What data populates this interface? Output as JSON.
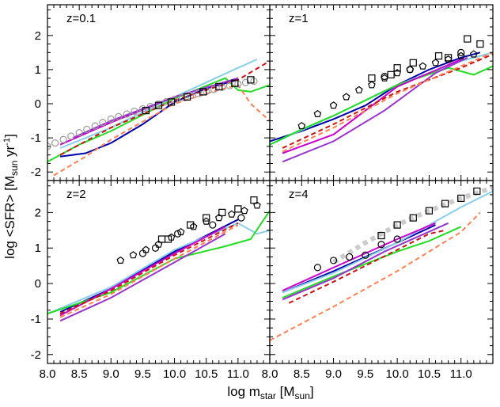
{
  "figure": {
    "xlabel_main": "log m",
    "xlabel_sub": "star",
    "xlabel_unit_pre": " [M",
    "xlabel_unit_sub": "sun",
    "xlabel_unit_post": "]",
    "ylabel_main": "log <SFR> [M",
    "ylabel_sub": "sun",
    "ylabel_mid": " yr",
    "ylabel_sup": "-1",
    "ylabel_post": "]"
  },
  "chart_data": [
    {
      "type": "line",
      "panel": "top-left",
      "label": "z=0.1",
      "xlim": [
        8.0,
        11.5
      ],
      "ylim": [
        -2.25,
        2.9
      ],
      "xticks": [],
      "yticks": [
        "-2",
        "-1",
        "0",
        "1",
        "2"
      ],
      "series": [
        {
          "color": "#0000aa",
          "dash": "",
          "x": [
            8.2,
            8.6,
            9.0,
            9.5,
            10.0,
            10.5,
            11.0
          ],
          "y": [
            -1.55,
            -1.45,
            -1.15,
            -0.6,
            0.05,
            0.45,
            0.7
          ]
        },
        {
          "color": "#87ceeb",
          "dash": "",
          "x": [
            8.2,
            9.0,
            10.0,
            11.0,
            11.3
          ],
          "y": [
            -1.3,
            -0.7,
            0.2,
            1.05,
            1.3
          ]
        },
        {
          "color": "#22dd22",
          "dash": "",
          "x": [
            8.0,
            8.5,
            9.0,
            10.0,
            10.8,
            11.0,
            11.2,
            11.5
          ],
          "y": [
            -1.7,
            -1.2,
            -0.8,
            0.15,
            0.75,
            0.4,
            0.35,
            0.55
          ]
        },
        {
          "color": "#cc00cc",
          "dash": "",
          "x": [
            8.2,
            9.0,
            10.0,
            11.0
          ],
          "y": [
            -1.2,
            -0.55,
            0.2,
            0.75
          ]
        },
        {
          "color": "#9933cc",
          "dash": "",
          "x": [
            8.4,
            9.0,
            10.0,
            11.0
          ],
          "y": [
            -1.0,
            -0.5,
            0.2,
            0.75
          ]
        },
        {
          "color": "#cc1111",
          "dash": "6,4",
          "x": [
            8.2,
            9.0,
            10.0,
            11.0,
            11.5
          ],
          "y": [
            -1.5,
            -0.7,
            0.1,
            0.7,
            1.25
          ]
        },
        {
          "color": "#ff7f50",
          "dash": "6,4",
          "x": [
            8.1,
            8.6,
            9.0,
            10.0,
            10.6,
            11.0,
            11.2,
            11.5
          ],
          "y": [
            -2.1,
            -1.55,
            -1.05,
            0.0,
            0.35,
            0.55,
            0.0,
            -0.5
          ]
        }
      ],
      "markers": [
        {
          "shape": "circle",
          "color": "#999999",
          "x": [
            8.0,
            8.12,
            8.25,
            8.37,
            8.5,
            8.62,
            8.75,
            8.87,
            9.0,
            9.12,
            9.25,
            9.37,
            9.5,
            9.62,
            9.75,
            9.87,
            10.0,
            10.12,
            10.25,
            10.37,
            10.5,
            10.62,
            10.75,
            10.87,
            11.0,
            11.12,
            11.25
          ],
          "y": [
            -1.25,
            -1.15,
            -1.05,
            -0.95,
            -0.85,
            -0.75,
            -0.65,
            -0.55,
            -0.45,
            -0.38,
            -0.3,
            -0.22,
            -0.15,
            -0.08,
            -0.01,
            0.06,
            0.12,
            0.18,
            0.24,
            0.3,
            0.36,
            0.42,
            0.48,
            0.53,
            0.58,
            0.62,
            0.66
          ]
        },
        {
          "shape": "square",
          "color": "#000000",
          "x": [
            9.55,
            9.75,
            9.95,
            10.2,
            10.45,
            10.7,
            10.95,
            11.2
          ],
          "y": [
            -0.2,
            -0.05,
            0.05,
            0.2,
            0.35,
            0.5,
            0.6,
            0.7
          ]
        }
      ]
    },
    {
      "type": "line",
      "panel": "top-right",
      "label": "z=1",
      "xlim": [
        8.0,
        11.5
      ],
      "ylim": [
        -2.25,
        2.9
      ],
      "xticks": [],
      "yticks": [],
      "series": [
        {
          "color": "#0000aa",
          "dash": "",
          "x": [
            8.0,
            8.5,
            9.0,
            9.5,
            10.0,
            10.5,
            11.0,
            11.3
          ],
          "y": [
            -1.1,
            -0.8,
            -0.45,
            -0.05,
            0.55,
            1.0,
            1.35,
            1.5
          ]
        },
        {
          "color": "#87ceeb",
          "dash": "",
          "x": [
            8.0,
            9.0,
            10.0,
            11.0,
            11.5
          ],
          "y": [
            -1.2,
            -0.35,
            0.55,
            1.25,
            1.5
          ]
        },
        {
          "color": "#22dd22",
          "dash": "",
          "x": [
            8.0,
            8.5,
            9.0,
            10.0,
            10.8,
            11.2,
            11.5
          ],
          "y": [
            -1.2,
            -0.75,
            -0.35,
            0.55,
            1.05,
            0.85,
            1.1
          ]
        },
        {
          "color": "#cc00cc",
          "dash": "",
          "x": [
            8.2,
            9.0,
            10.0,
            11.0
          ],
          "y": [
            -1.45,
            -0.9,
            0.5,
            1.3
          ]
        },
        {
          "color": "#9933cc",
          "dash": "",
          "x": [
            8.2,
            9.0,
            9.8,
            10.6,
            11.1
          ],
          "y": [
            -1.7,
            -1.1,
            -0.2,
            0.9,
            1.35
          ]
        },
        {
          "color": "#cc1111",
          "dash": "6,4",
          "x": [
            8.2,
            9.0,
            10.0,
            11.0,
            11.5
          ],
          "y": [
            -1.3,
            -0.6,
            0.35,
            1.05,
            1.45
          ]
        },
        {
          "color": "#ff7f50",
          "dash": "6,4",
          "x": [
            8.2,
            9.0,
            10.0,
            11.0,
            11.5
          ],
          "y": [
            -1.4,
            -0.7,
            0.3,
            1.1,
            1.5
          ]
        }
      ],
      "markers": [
        {
          "shape": "pentagon",
          "color": "#000000",
          "x": [
            8.5,
            8.75,
            9.0,
            9.2,
            9.4,
            9.6,
            9.8,
            10.0,
            10.2,
            10.4,
            10.6,
            10.8,
            11.0,
            11.2
          ],
          "y": [
            -0.65,
            -0.3,
            -0.05,
            0.2,
            0.4,
            0.55,
            0.75,
            0.9,
            1.0,
            1.1,
            1.2,
            1.3,
            1.4,
            1.45
          ]
        },
        {
          "shape": "circle",
          "color": "#000000",
          "x": [
            9.8,
            10.2,
            11.0
          ],
          "y": [
            0.8,
            1.0,
            1.5
          ]
        },
        {
          "shape": "square",
          "color": "#000000",
          "x": [
            9.6,
            9.9,
            10.0,
            10.25,
            10.65,
            10.8,
            11.1,
            11.3
          ],
          "y": [
            0.75,
            0.85,
            1.05,
            1.2,
            1.4,
            1.35,
            1.9,
            1.75
          ]
        }
      ]
    },
    {
      "type": "line",
      "panel": "bottom-left",
      "label": "z=2",
      "xlim": [
        8.0,
        11.5
      ],
      "ylim": [
        -2.25,
        2.9
      ],
      "xticks": [
        "8.0",
        "8.5",
        "9.0",
        "9.5",
        "10.0",
        "10.5",
        "11.0"
      ],
      "yticks": [
        "-2",
        "-1",
        "0",
        "1",
        "2"
      ],
      "series": [
        {
          "color": "#0000aa",
          "dash": "",
          "x": [
            8.2,
            9.0,
            10.0,
            11.0
          ],
          "y": [
            -0.8,
            -0.15,
            0.9,
            1.8
          ]
        },
        {
          "color": "#87ceeb",
          "dash": "",
          "x": [
            8.0,
            9.0,
            10.0,
            11.0,
            11.3,
            11.5
          ],
          "y": [
            -0.85,
            -0.1,
            0.95,
            1.7,
            1.4,
            1.5
          ]
        },
        {
          "color": "#22dd22",
          "dash": "",
          "x": [
            8.0,
            9.0,
            10.0,
            10.8,
            11.2,
            11.5
          ],
          "y": [
            -0.85,
            -0.25,
            0.7,
            1.05,
            1.25,
            2.05
          ]
        },
        {
          "color": "#cc00cc",
          "dash": "",
          "x": [
            8.2,
            9.0,
            10.0,
            10.8
          ],
          "y": [
            -0.9,
            -0.15,
            0.85,
            1.6
          ]
        },
        {
          "color": "#9933cc",
          "dash": "",
          "x": [
            8.2,
            9.0,
            10.0,
            10.8
          ],
          "y": [
            -1.05,
            -0.4,
            0.6,
            1.4
          ]
        },
        {
          "color": "#cc1111",
          "dash": "6,4",
          "x": [
            8.2,
            9.0,
            10.0,
            11.0
          ],
          "y": [
            -0.85,
            -0.2,
            0.8,
            1.7
          ]
        },
        {
          "color": "#ff7f50",
          "dash": "6,4",
          "x": [
            8.2,
            9.0,
            10.0,
            11.0
          ],
          "y": [
            -0.95,
            -0.3,
            0.7,
            1.65
          ]
        }
      ],
      "markers": [
        {
          "shape": "pentagon",
          "color": "#000000",
          "x": [
            9.15,
            9.35,
            9.55,
            9.75,
            9.95,
            10.1,
            10.3,
            10.5,
            10.7,
            10.9,
            11.1,
            11.3
          ],
          "y": [
            0.65,
            0.8,
            0.95,
            1.1,
            1.3,
            1.45,
            1.6,
            1.75,
            1.85,
            1.95,
            2.05,
            2.2
          ]
        },
        {
          "shape": "circle",
          "color": "#000000",
          "x": [
            9.5,
            9.7,
            10.05,
            10.6,
            11.05
          ],
          "y": [
            0.85,
            1.0,
            1.4,
            1.65,
            1.85
          ]
        },
        {
          "shape": "square",
          "color": "#000000",
          "x": [
            9.8,
            9.9,
            10.25,
            10.5,
            10.75,
            11.0,
            11.25
          ],
          "y": [
            1.25,
            1.25,
            1.65,
            1.85,
            2.0,
            2.1,
            2.35
          ]
        }
      ]
    },
    {
      "type": "line",
      "panel": "bottom-right",
      "label": "z=4",
      "xlim": [
        8.0,
        11.5
      ],
      "ylim": [
        -2.25,
        2.9
      ],
      "xticks": [
        "8.0",
        "8.5",
        "9.0",
        "9.5",
        "10.0",
        "10.5",
        "11.0"
      ],
      "yticks": [],
      "series": [
        {
          "color": "#0000aa",
          "dash": "",
          "x": [
            8.2,
            9.0,
            10.0,
            10.6
          ],
          "y": [
            -0.25,
            0.35,
            1.15,
            1.65
          ]
        },
        {
          "color": "#87ceeb",
          "dash": "",
          "x": [
            8.2,
            9.0,
            10.0,
            11.0,
            11.5
          ],
          "y": [
            -0.25,
            0.3,
            1.15,
            2.15,
            2.6
          ]
        },
        {
          "color": "#22dd22",
          "dash": "",
          "x": [
            8.2,
            9.0,
            10.0,
            10.5,
            11.0
          ],
          "y": [
            -0.4,
            0.2,
            0.9,
            1.2,
            1.6
          ]
        },
        {
          "color": "#cc00cc",
          "dash": "",
          "x": [
            8.2,
            9.0,
            10.0,
            10.6
          ],
          "y": [
            -0.2,
            0.45,
            1.25,
            1.7
          ]
        },
        {
          "color": "#9933cc",
          "dash": "",
          "x": [
            8.2,
            9.0,
            9.8,
            10.8
          ],
          "y": [
            -0.45,
            0.15,
            0.9,
            1.7
          ]
        },
        {
          "color": "#cc1111",
          "dash": "6,4",
          "x": [
            8.3,
            9.0,
            10.0,
            10.5,
            10.75
          ],
          "y": [
            -0.55,
            0.05,
            0.95,
            1.4,
            1.5
          ]
        },
        {
          "color": "#ff7f50",
          "dash": "6,4",
          "x": [
            8.0,
            9.0,
            10.0,
            11.0,
            11.3
          ],
          "y": [
            -1.6,
            -0.65,
            0.35,
            1.45,
            2.0
          ]
        }
      ],
      "markers": [
        {
          "shape": "thick-dashes",
          "color": "#cccccc",
          "x": [
            9.0,
            9.5,
            10.0,
            10.5,
            11.0,
            11.5
          ],
          "y": [
            0.6,
            1.15,
            1.65,
            2.05,
            2.4,
            2.7
          ]
        },
        {
          "shape": "circle",
          "color": "#000000",
          "x": [
            8.75,
            9.0,
            9.25,
            9.5,
            9.75,
            10.0
          ],
          "y": [
            0.45,
            0.65,
            0.75,
            0.8,
            1.1,
            1.25
          ]
        },
        {
          "shape": "square",
          "color": "#000000",
          "x": [
            9.75,
            10.0,
            10.25,
            10.5,
            10.75,
            11.0,
            11.25
          ],
          "y": [
            1.35,
            1.65,
            1.85,
            2.05,
            2.25,
            2.4,
            2.6
          ]
        }
      ]
    }
  ]
}
